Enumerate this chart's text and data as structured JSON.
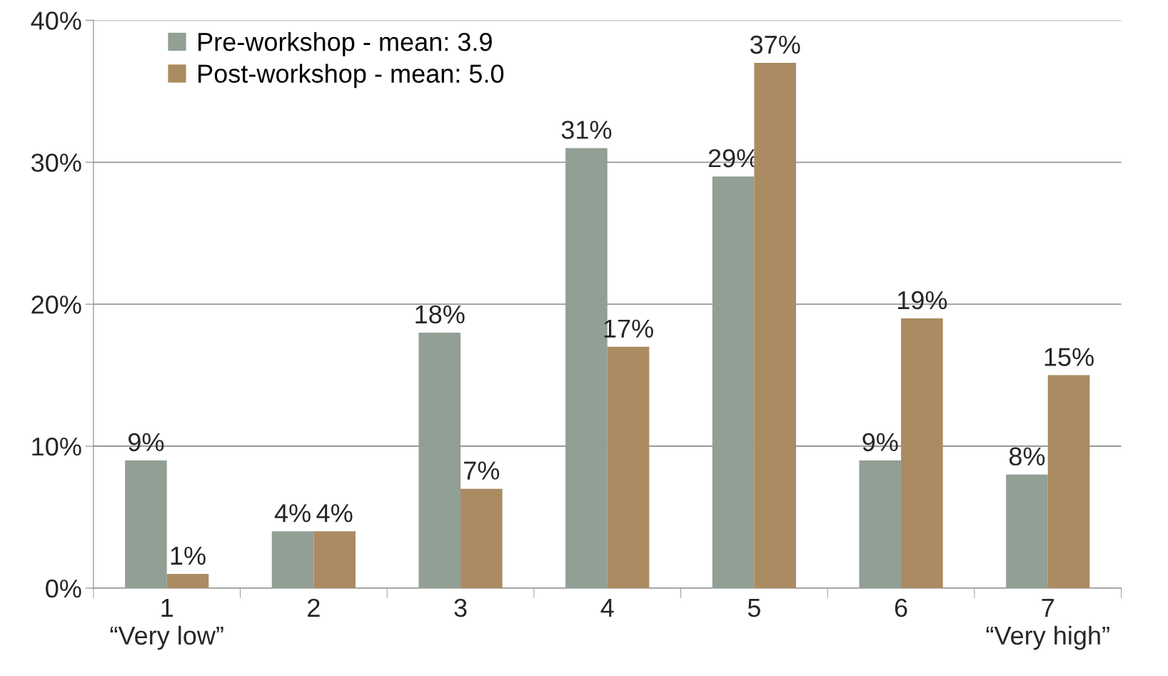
{
  "chart_data": {
    "type": "bar",
    "categories": [
      "1\n“Very low”",
      "2",
      "3",
      "4",
      "5",
      "6",
      "7\n“Very high”"
    ],
    "series": [
      {
        "name": "Pre-workshop - mean: 3.9",
        "color": "#919f94",
        "values": [
          9,
          4,
          18,
          31,
          29,
          9,
          8
        ],
        "value_labels": [
          "9%",
          "4%",
          "18%",
          "31%",
          "29%",
          "9%",
          "8%"
        ]
      },
      {
        "name": "Post-workshop - mean: 5.0",
        "color": "#ab8b62",
        "values": [
          1,
          4,
          7,
          17,
          37,
          19,
          15
        ],
        "value_labels": [
          "1%",
          "4%",
          "7%",
          "17%",
          "37%",
          "19%",
          "15%"
        ]
      }
    ],
    "ylim": [
      0,
      40
    ],
    "yticks": [
      {
        "value": 0,
        "label": "0%"
      },
      {
        "value": 10,
        "label": "10%"
      },
      {
        "value": 20,
        "label": "20%"
      },
      {
        "value": 30,
        "label": "30%"
      },
      {
        "value": 40,
        "label": "40%"
      }
    ],
    "grid": "y",
    "legend": "top left"
  }
}
